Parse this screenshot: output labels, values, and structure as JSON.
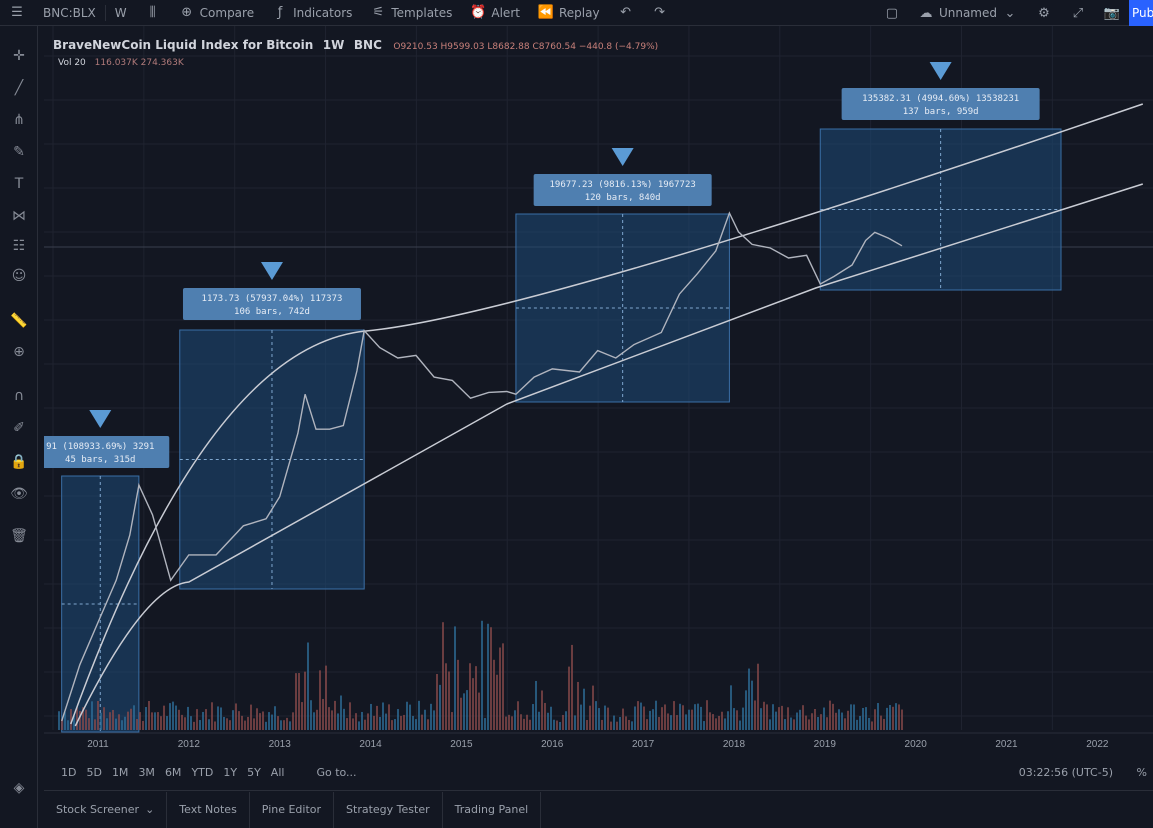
{
  "topbar": {
    "symbol": "BNC:BLX",
    "interval": "W",
    "compare": "Compare",
    "indicators": "Indicators",
    "templates": "Templates",
    "alert": "Alert",
    "replay": "Replay",
    "layout_name": "Unnamed",
    "publish": "Pub"
  },
  "legend": {
    "title": "BraveNewCoin Liquid Index for Bitcoin",
    "interval": "1W",
    "exchange": "BNC",
    "ohlc": "O9210.53 H9599.03 L8682.88 C8760.54 −440.8 (−4.79%)",
    "vol_label": "Vol 20",
    "vol_values": "116.037K  274.363K"
  },
  "range_buttons": [
    "1D",
    "5D",
    "1M",
    "3M",
    "6M",
    "YTD",
    "1Y",
    "5Y",
    "All"
  ],
  "goto": "Go to...",
  "timezone": "03:22:56 (UTC-5)",
  "percent": "%",
  "bottom_tabs": [
    "Stock Screener",
    "Text Notes",
    "Pine Editor",
    "Strategy Tester",
    "Trading Panel"
  ],
  "colors": {
    "background": "#131722",
    "box_fill": "#1e4a78",
    "label_fill": "#4f7fb0",
    "arrow": "#5b9bd5",
    "price_line": "#b0b4be",
    "curve": "#c9ccd4",
    "vol_blue": "#2f6f9a",
    "vol_red": "#8a4b4b"
  },
  "chart_data": {
    "type": "line",
    "title": "BraveNewCoin Liquid Index for Bitcoin",
    "x_tick_labels": [
      "2011",
      "2012",
      "2013",
      "2014",
      "2015",
      "2016",
      "2017",
      "2018",
      "2019",
      "2020",
      "2021",
      "2022"
    ],
    "price_series": {
      "x": [
        2010.6,
        2010.8,
        2011.0,
        2011.2,
        2011.35,
        2011.45,
        2011.6,
        2011.8,
        2012.0,
        2012.3,
        2012.6,
        2012.85,
        2013.0,
        2013.2,
        2013.28,
        2013.4,
        2013.55,
        2013.7,
        2013.85,
        2013.93,
        2014.1,
        2014.3,
        2014.5,
        2014.7,
        2014.9,
        2015.1,
        2015.3,
        2015.5,
        2015.6,
        2015.8,
        2016.0,
        2016.3,
        2016.5,
        2016.7,
        2016.9,
        2017.2,
        2017.4,
        2017.6,
        2017.8,
        2017.95,
        2018.05,
        2018.2,
        2018.4,
        2018.6,
        2018.8,
        2018.95,
        2019.1,
        2019.3,
        2019.45,
        2019.55,
        2019.7,
        2019.85
      ],
      "values": [
        0.1,
        0.4,
        1.0,
        3.0,
        8.0,
        29.0,
        13.0,
        3.0,
        5.0,
        5.5,
        10.0,
        13.0,
        20.0,
        100.0,
        230.0,
        110.0,
        100.0,
        120.0,
        400.0,
        1150.0,
        700.0,
        600.0,
        580.0,
        380.0,
        320.0,
        230.0,
        240.0,
        270.0,
        230.0,
        380.0,
        420.0,
        430.0,
        650.0,
        600.0,
        750.0,
        1100.0,
        2500.0,
        4500.0,
        7000.0,
        19000.0,
        11000.0,
        9000.0,
        7500.0,
        6500.0,
        6300.0,
        3500.0,
        3800.0,
        5500.0,
        9000.0,
        12000.0,
        9500.0,
        8700.0
      ]
    },
    "measure_boxes": [
      {
        "label": "91 (108933.69%) 3291",
        "sublabel": "45 bars, 315d",
        "x_start": 2010.6,
        "x_end": 2011.45
      },
      {
        "label": "1173.73 (57937.04%) 117373",
        "sublabel": "106 bars, 742d",
        "x_start": 2011.9,
        "x_end": 2013.93
      },
      {
        "label": "19677.23 (9816.13%) 1967723",
        "sublabel": "120 bars, 840d",
        "x_start": 2015.6,
        "x_end": 2017.95
      },
      {
        "label": "135382.31 (4994.60%) 13538231",
        "sublabel": "137 bars, 959d",
        "x_start": 2018.95,
        "x_end": 2021.6
      }
    ],
    "volume": {
      "unit": "K"
    }
  }
}
